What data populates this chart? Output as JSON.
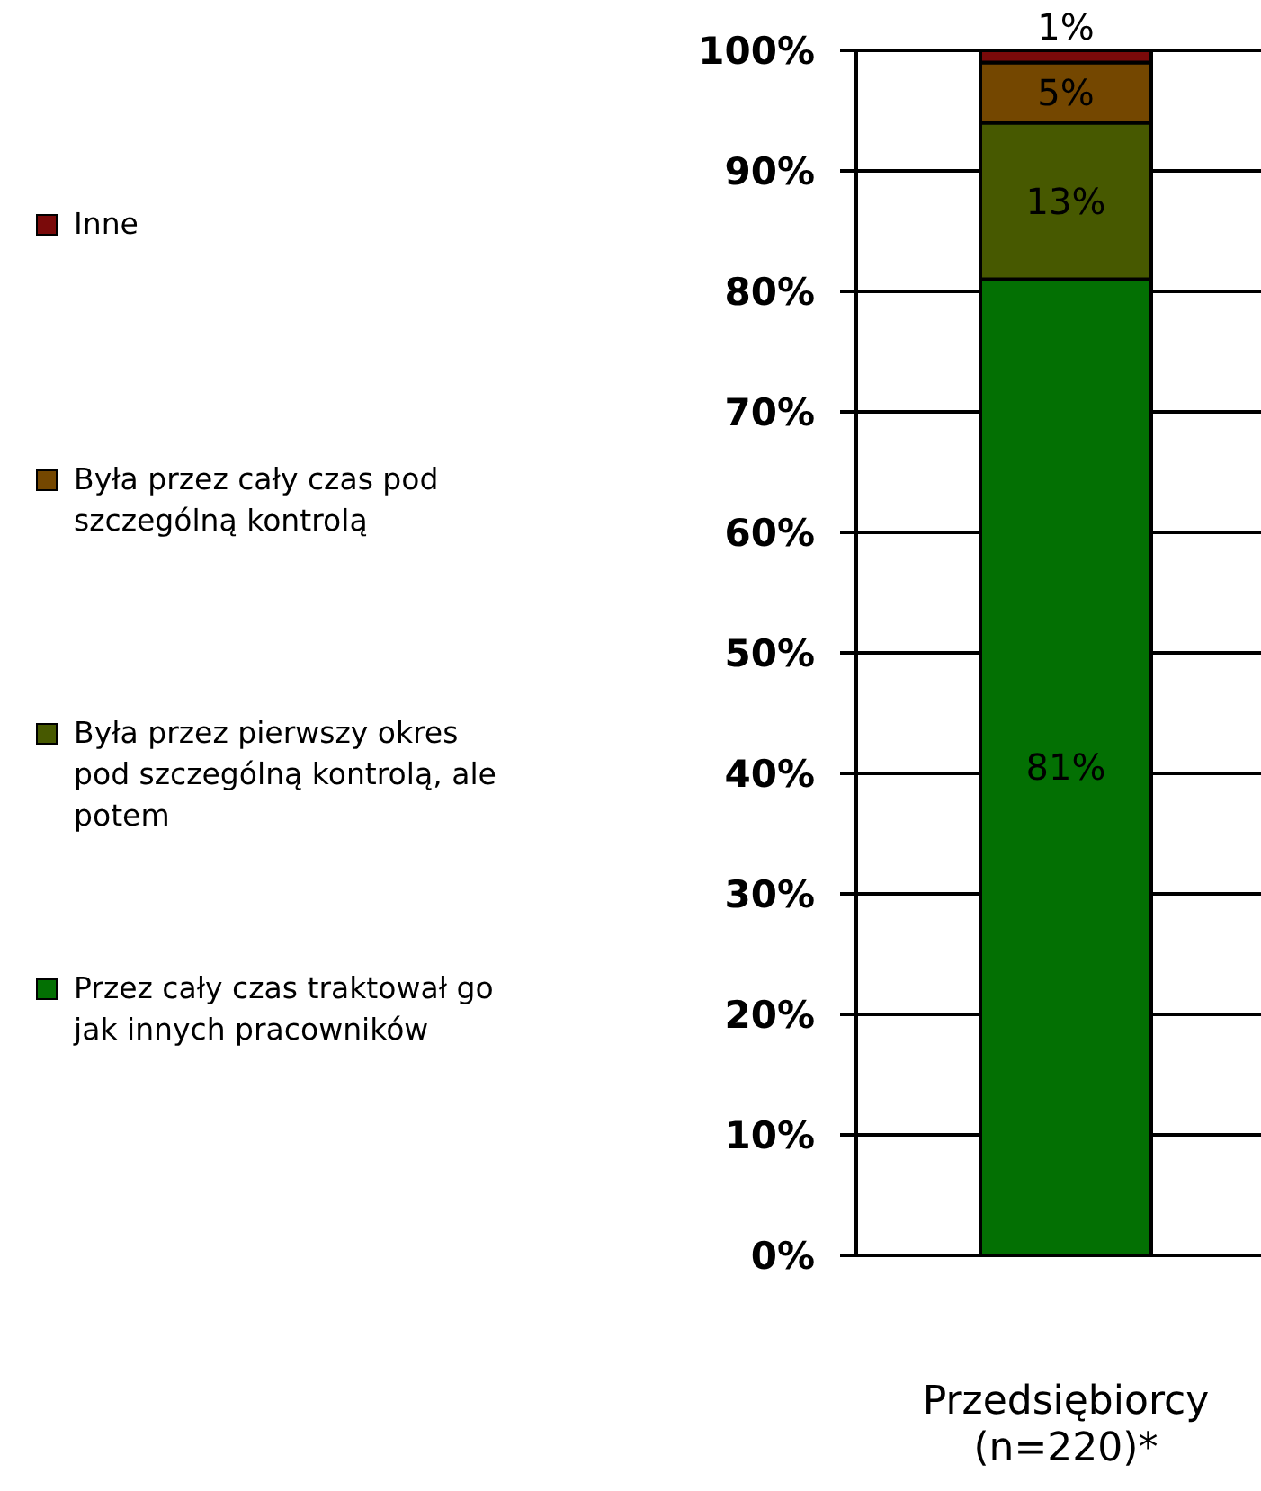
{
  "chart_data": {
    "type": "bar",
    "stacked": true,
    "categories": [
      "Przedsiębiorcy (n=220)*"
    ],
    "series": [
      {
        "name": "Przez cały czas traktował go jak innych pracowników",
        "color": "#037003",
        "values": [
          81
        ],
        "value_labels": [
          "81%"
        ]
      },
      {
        "name": "Była przez pierwszy okres pod szczególną kontrolą, ale potem",
        "color": "#475900",
        "values": [
          13
        ],
        "value_labels": [
          "13%"
        ]
      },
      {
        "name": "Była przez cały czas pod szczególną kontrolą",
        "color": "#744700",
        "values": [
          5
        ],
        "value_labels": [
          "5%"
        ]
      },
      {
        "name": "Inne",
        "color": "#7a0a0a",
        "values": [
          1
        ],
        "value_labels": [
          "1%"
        ]
      }
    ],
    "ylim": [
      0,
      100
    ],
    "yticks": [
      {
        "value": 0,
        "label": "0%"
      },
      {
        "value": 10,
        "label": "10%"
      },
      {
        "value": 20,
        "label": "20%"
      },
      {
        "value": 30,
        "label": "30%"
      },
      {
        "value": 40,
        "label": "40%"
      },
      {
        "value": 50,
        "label": "50%"
      },
      {
        "value": 60,
        "label": "60%"
      },
      {
        "value": 70,
        "label": "70%"
      },
      {
        "value": 80,
        "label": "80%"
      },
      {
        "value": 90,
        "label": "90%"
      },
      {
        "value": 100,
        "label": "100%"
      }
    ],
    "grid": "y",
    "legend": "left"
  }
}
